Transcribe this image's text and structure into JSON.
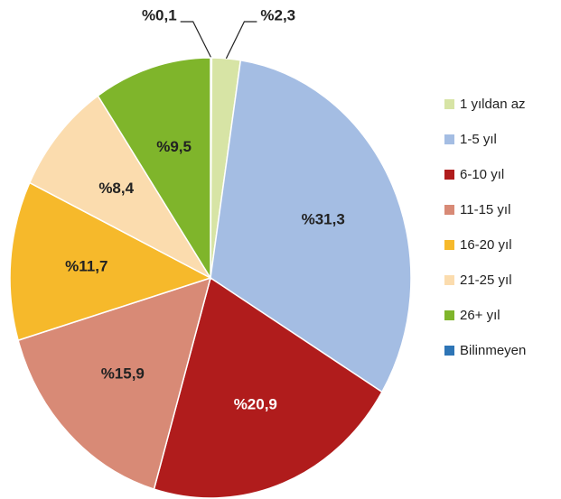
{
  "chart_data": {
    "type": "pie",
    "categories": [
      "Bilinmeyen",
      "1 yıldan az",
      "1-5 yıl",
      "6-10 yıl",
      "11-15 yıl",
      "16-20 yıl",
      "21-25 yıl",
      "26+ yıl"
    ],
    "values": [
      0.1,
      2.3,
      31.3,
      20.9,
      15.9,
      11.7,
      8.4,
      9.5
    ],
    "labels": [
      "%0,1",
      "%2,3",
      "%31,3",
      "%20,9",
      "%15,9",
      "%11,7",
      "%8,4",
      "%9,5"
    ],
    "colors": [
      "#2e75b6",
      "#d7e4a5",
      "#a4bde3",
      "#b01c1c",
      "#d88a76",
      "#f6b92b",
      "#fbdcae",
      "#7fb52b"
    ],
    "label_colors": [
      "#222222",
      "#222222",
      "#222222",
      "#ffffff",
      "#222222",
      "#222222",
      "#222222",
      "#222222"
    ],
    "legend_order": [
      "1 yıldan az",
      "1-5 yıl",
      "6-10 yıl",
      "11-15 yıl",
      "16-20 yıl",
      "21-25 yıl",
      "26+ yıl",
      "Bilinmeyen"
    ],
    "legend_position": "right",
    "start_angle": "12 o'clock, clockwise",
    "title": ""
  }
}
